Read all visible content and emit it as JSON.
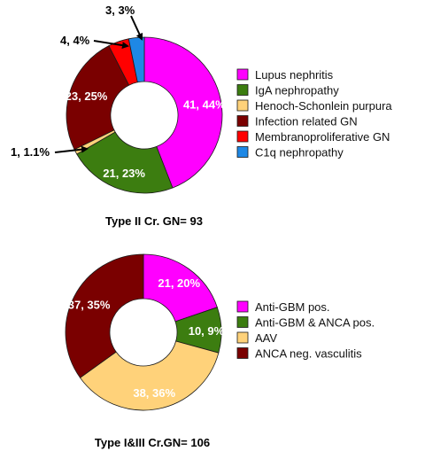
{
  "chart_data": [
    {
      "type": "pie",
      "title": "Type II Cr. GN= 93",
      "slices": [
        {
          "name": "Lupus nephritis",
          "value": 41,
          "label": "41, 44%",
          "color": "#ff00ff"
        },
        {
          "name": "IgA nephropathy",
          "value": 21,
          "label": "21, 23%",
          "color": "#3c7d10"
        },
        {
          "name": "Henoch-Schonlein purpura",
          "value": 1,
          "label": "1, 1.1%",
          "color": "#ffd27a"
        },
        {
          "name": "Infection related GN",
          "value": 23,
          "label": "23, 25%",
          "color": "#7a0000"
        },
        {
          "name": "Membranoproliferative GN",
          "value": 4,
          "label": "4, 4%",
          "color": "#ff0000"
        },
        {
          "name": "C1q nephropathy",
          "value": 3,
          "label": "3, 3%",
          "color": "#1e88e5"
        }
      ]
    },
    {
      "type": "pie",
      "title": "Type I&III Cr.GN= 106",
      "slices": [
        {
          "name": "Anti-GBM pos.",
          "value": 21,
          "label": "21, 20%",
          "color": "#ff00ff"
        },
        {
          "name": "Anti-GBM & ANCA pos.",
          "value": 10,
          "label": "10, 9%",
          "color": "#3c7d10"
        },
        {
          "name": "AAV",
          "value": 38,
          "label": "38, 36%",
          "color": "#ffd27a"
        },
        {
          "name": "ANCA neg. vasculitis",
          "value": 37,
          "label": "37, 35%",
          "color": "#7a0000"
        }
      ]
    }
  ]
}
